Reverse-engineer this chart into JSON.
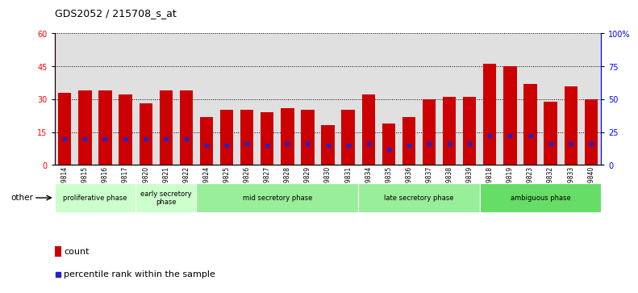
{
  "title": "GDS2052 / 215708_s_at",
  "samples": [
    "GSM109814",
    "GSM109815",
    "GSM109816",
    "GSM109817",
    "GSM109820",
    "GSM109821",
    "GSM109822",
    "GSM109824",
    "GSM109825",
    "GSM109826",
    "GSM109827",
    "GSM109828",
    "GSM109829",
    "GSM109830",
    "GSM109831",
    "GSM109834",
    "GSM109835",
    "GSM109836",
    "GSM109837",
    "GSM109838",
    "GSM109839",
    "GSM109818",
    "GSM109819",
    "GSM109823",
    "GSM109832",
    "GSM109833",
    "GSM109840"
  ],
  "counts": [
    33,
    34,
    34,
    32,
    28,
    34,
    34,
    22,
    25,
    25,
    24,
    26,
    25,
    18,
    25,
    32,
    19,
    22,
    30,
    31,
    31,
    46,
    45,
    37,
    29,
    36,
    30
  ],
  "percentile_ranks": [
    20,
    20,
    20,
    20,
    20,
    20,
    20,
    15,
    15,
    16,
    15,
    16,
    16,
    15,
    15,
    16,
    12,
    15,
    16,
    16,
    16,
    22,
    22,
    22,
    16,
    16,
    16
  ],
  "phase_configs": [
    {
      "name": "proliferative phase",
      "start": 0,
      "end": 4,
      "color": "#ccffcc"
    },
    {
      "name": "early secretory\nphase",
      "start": 4,
      "end": 7,
      "color": "#ccffcc"
    },
    {
      "name": "mid secretory phase",
      "start": 7,
      "end": 15,
      "color": "#99ee99"
    },
    {
      "name": "late secretory phase",
      "start": 15,
      "end": 21,
      "color": "#99ee99"
    },
    {
      "name": "ambiguous phase",
      "start": 21,
      "end": 27,
      "color": "#66dd66"
    }
  ],
  "ylim_left": [
    0,
    60
  ],
  "ylim_right": [
    0,
    100
  ],
  "bar_color": "#cc0000",
  "marker_color": "#2222cc",
  "plot_bg": "#e0e0e0",
  "fig_bg": "#ffffff"
}
